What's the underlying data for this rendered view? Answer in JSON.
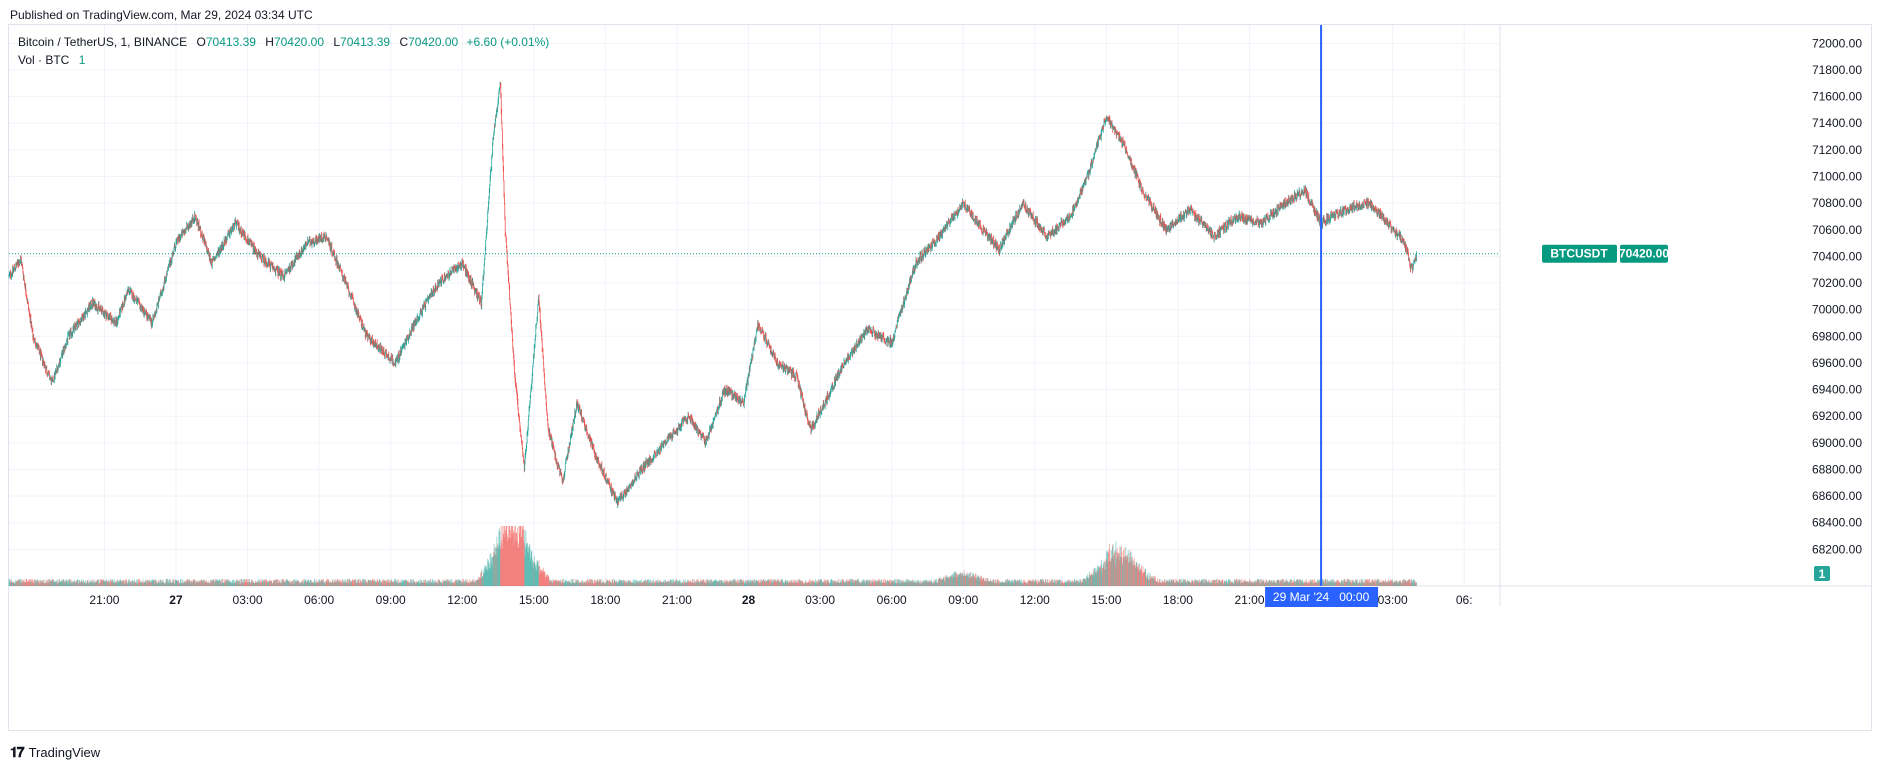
{
  "header": {
    "published": "Published on TradingView.com, Mar 29, 2024 03:34 UTC"
  },
  "legend": {
    "symbol": "Bitcoin / TetherUS, 1, BINANCE",
    "open_label": "O",
    "open": "70413.39",
    "high_label": "H",
    "high": "70420.00",
    "low_label": "L",
    "low": "70413.39",
    "close_label": "C",
    "close": "70420.00",
    "change": "+6.60 (+0.01%)",
    "volume_label": "Vol · BTC",
    "volume_value": "1"
  },
  "price_tag": {
    "ticker": "BTCUSDT",
    "price": "70420.00"
  },
  "volume_tag": "1",
  "crosshair_label": "29 Mar '24   00:00",
  "footer": {
    "brand": "TradingView"
  },
  "colors": {
    "up": "#26a69a",
    "down": "#ef5350",
    "crosshair": "#2962ff",
    "price_line": "#089981"
  },
  "chart_data": {
    "type": "candlestick",
    "symbol": "BTCUSDT",
    "timeframe": "1",
    "y_ticks": [
      68200,
      68400,
      68600,
      68800,
      69000,
      69200,
      69400,
      69600,
      69800,
      70000,
      70200,
      70400,
      70600,
      70800,
      71000,
      71200,
      71400,
      71600,
      71800,
      72000
    ],
    "y_range": [
      68000,
      72100
    ],
    "x_ticks": [
      "21:00",
      "27",
      "03:00",
      "06:00",
      "09:00",
      "12:00",
      "15:00",
      "18:00",
      "21:00",
      "28",
      "03:00",
      "06:00",
      "09:00",
      "12:00",
      "15:00",
      "18:00",
      "21:00",
      "03:00",
      "06:"
    ],
    "x_tick_hours": [
      21,
      24,
      27,
      30,
      33,
      36,
      39,
      42,
      45,
      48,
      51,
      54,
      57,
      60,
      63,
      66,
      69,
      75,
      78
    ],
    "x_range_hours": [
      17.0,
      79.5
    ],
    "last_price": 70420.0,
    "crosshair_hour": 72,
    "path": [
      [
        17.0,
        70250
      ],
      [
        17.5,
        70380
      ],
      [
        18.0,
        69800
      ],
      [
        18.8,
        69450
      ],
      [
        19.5,
        69800
      ],
      [
        20.5,
        70050
      ],
      [
        21.5,
        69900
      ],
      [
        22.0,
        70150
      ],
      [
        23.0,
        69900
      ],
      [
        24.0,
        70500
      ],
      [
        24.8,
        70700
      ],
      [
        25.5,
        70350
      ],
      [
        26.5,
        70650
      ],
      [
        27.5,
        70400
      ],
      [
        28.5,
        70250
      ],
      [
        29.5,
        70500
      ],
      [
        30.3,
        70550
      ],
      [
        31.0,
        70250
      ],
      [
        32.0,
        69800
      ],
      [
        33.2,
        69600
      ],
      [
        34.0,
        69900
      ],
      [
        35.0,
        70200
      ],
      [
        36.0,
        70350
      ],
      [
        36.8,
        70050
      ],
      [
        37.3,
        71300
      ],
      [
        37.6,
        71700
      ],
      [
        37.8,
        70600
      ],
      [
        38.2,
        69500
      ],
      [
        38.6,
        68800
      ],
      [
        39.2,
        70100
      ],
      [
        39.6,
        69100
      ],
      [
        40.2,
        68700
      ],
      [
        40.8,
        69300
      ],
      [
        41.6,
        68900
      ],
      [
        42.5,
        68550
      ],
      [
        43.5,
        68800
      ],
      [
        44.5,
        69000
      ],
      [
        45.5,
        69200
      ],
      [
        46.2,
        69000
      ],
      [
        47.0,
        69400
      ],
      [
        47.8,
        69300
      ],
      [
        48.4,
        69900
      ],
      [
        49.2,
        69600
      ],
      [
        50.0,
        69500
      ],
      [
        50.6,
        69100
      ],
      [
        51.2,
        69300
      ],
      [
        52.0,
        69600
      ],
      [
        53.0,
        69850
      ],
      [
        54.0,
        69750
      ],
      [
        55.0,
        70350
      ],
      [
        56.0,
        70550
      ],
      [
        57.0,
        70800
      ],
      [
        57.6,
        70650
      ],
      [
        58.5,
        70450
      ],
      [
        59.5,
        70800
      ],
      [
        60.5,
        70550
      ],
      [
        61.5,
        70700
      ],
      [
        62.2,
        71000
      ],
      [
        63.0,
        71450
      ],
      [
        63.7,
        71250
      ],
      [
        64.5,
        70900
      ],
      [
        65.5,
        70600
      ],
      [
        66.5,
        70750
      ],
      [
        67.5,
        70550
      ],
      [
        68.5,
        70700
      ],
      [
        69.5,
        70650
      ],
      [
        70.5,
        70800
      ],
      [
        71.3,
        70900
      ],
      [
        72.0,
        70650
      ],
      [
        73.0,
        70750
      ],
      [
        74.0,
        70800
      ],
      [
        74.8,
        70650
      ],
      [
        75.5,
        70500
      ],
      [
        75.8,
        70300
      ],
      [
        76.0,
        70420
      ]
    ],
    "volume_spikes": [
      {
        "hour": 37.8,
        "volume_fraction": 1.0
      },
      {
        "hour": 38.5,
        "volume_fraction": 0.85
      },
      {
        "hour": 63.2,
        "volume_fraction": 0.55
      },
      {
        "hour": 64.0,
        "volume_fraction": 0.4
      },
      {
        "hour": 57.0,
        "volume_fraction": 0.2
      }
    ]
  }
}
